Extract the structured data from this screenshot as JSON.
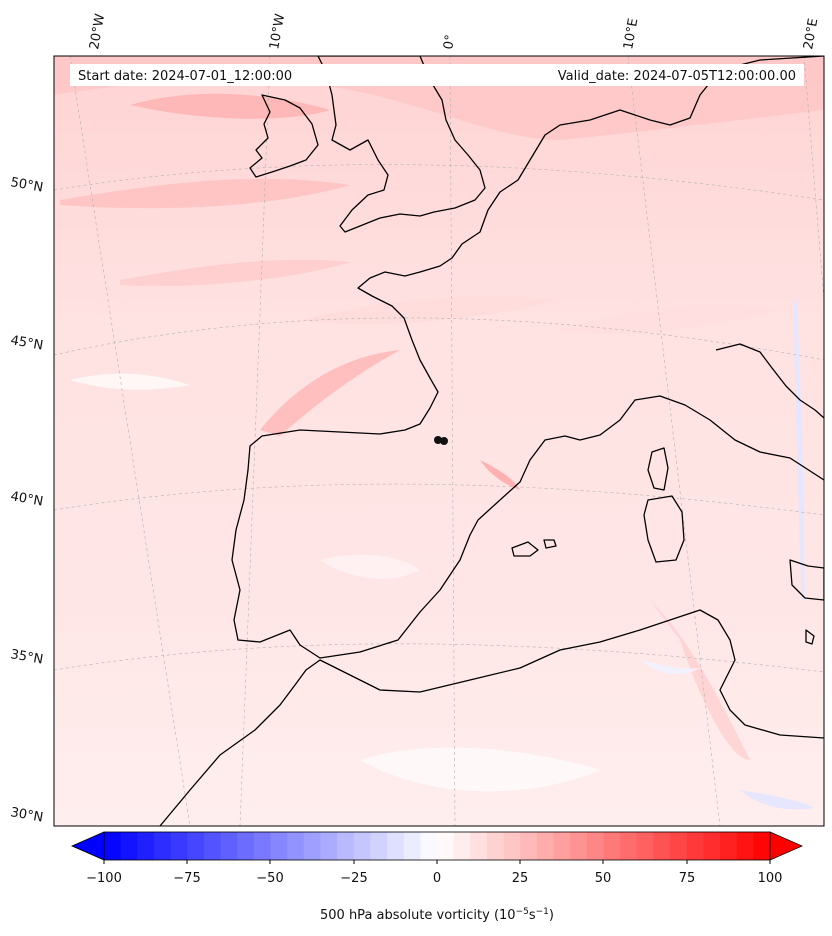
{
  "header": {
    "start_label": "Start date: 2024-07-01_12:00:00",
    "valid_label": "Valid_date: 2024-07-05T12:00:00.00"
  },
  "longitude_ticks": [
    "20°W",
    "10°W",
    "0°",
    "10°E",
    "20°E"
  ],
  "latitude_ticks": [
    "50°N",
    "45°N",
    "40°N",
    "35°N",
    "30°N"
  ],
  "colorbar": {
    "min": -100,
    "max": 100,
    "ticks": [
      "−100",
      "−75",
      "−50",
      "−25",
      "0",
      "25",
      "50",
      "75",
      "100"
    ],
    "label_main": "500 hPa absolute vorticity (10",
    "label_exp1": "−5",
    "label_mid": "s",
    "label_exp2": "−1",
    "label_end": ")",
    "colormap": "bwr",
    "low_color": "#0000ff",
    "mid_color": "#ffffff",
    "high_color": "#ff0000"
  },
  "chart_data": {
    "type": "heatmap",
    "variable": "500 hPa absolute vorticity",
    "units": "10^-5 s^-1",
    "region": "Western Europe, Iberia and North Africa",
    "lon_range": [
      -20,
      20
    ],
    "lat_range": [
      30,
      55
    ],
    "colorbar_range": [
      -100,
      100
    ],
    "start_date": "2024-07-01_12:00:00",
    "valid_date": "2024-07-05T12:00:00.00"
  }
}
